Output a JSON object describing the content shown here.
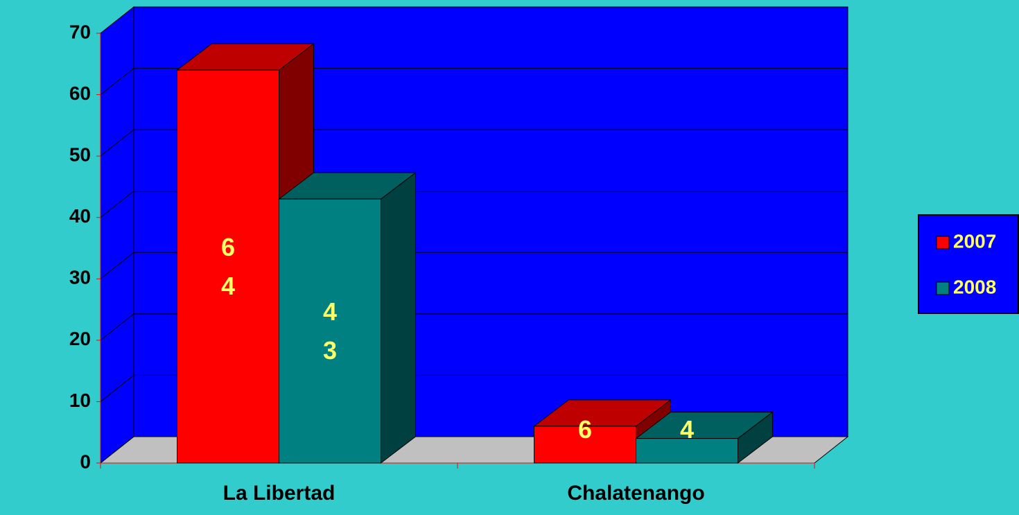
{
  "chart_data": {
    "type": "bar3d",
    "categories": [
      "La Libertad",
      "Chalatenango"
    ],
    "series": [
      {
        "name": "2007",
        "color": "#ff0000",
        "values": [
          64,
          6
        ]
      },
      {
        "name": "2008",
        "color": "#008080",
        "values": [
          43,
          4
        ]
      }
    ],
    "ylim": [
      0,
      70
    ],
    "yticks": [
      0,
      10,
      20,
      30,
      40,
      50,
      60,
      70
    ],
    "grid": true,
    "legend": "right"
  }
}
